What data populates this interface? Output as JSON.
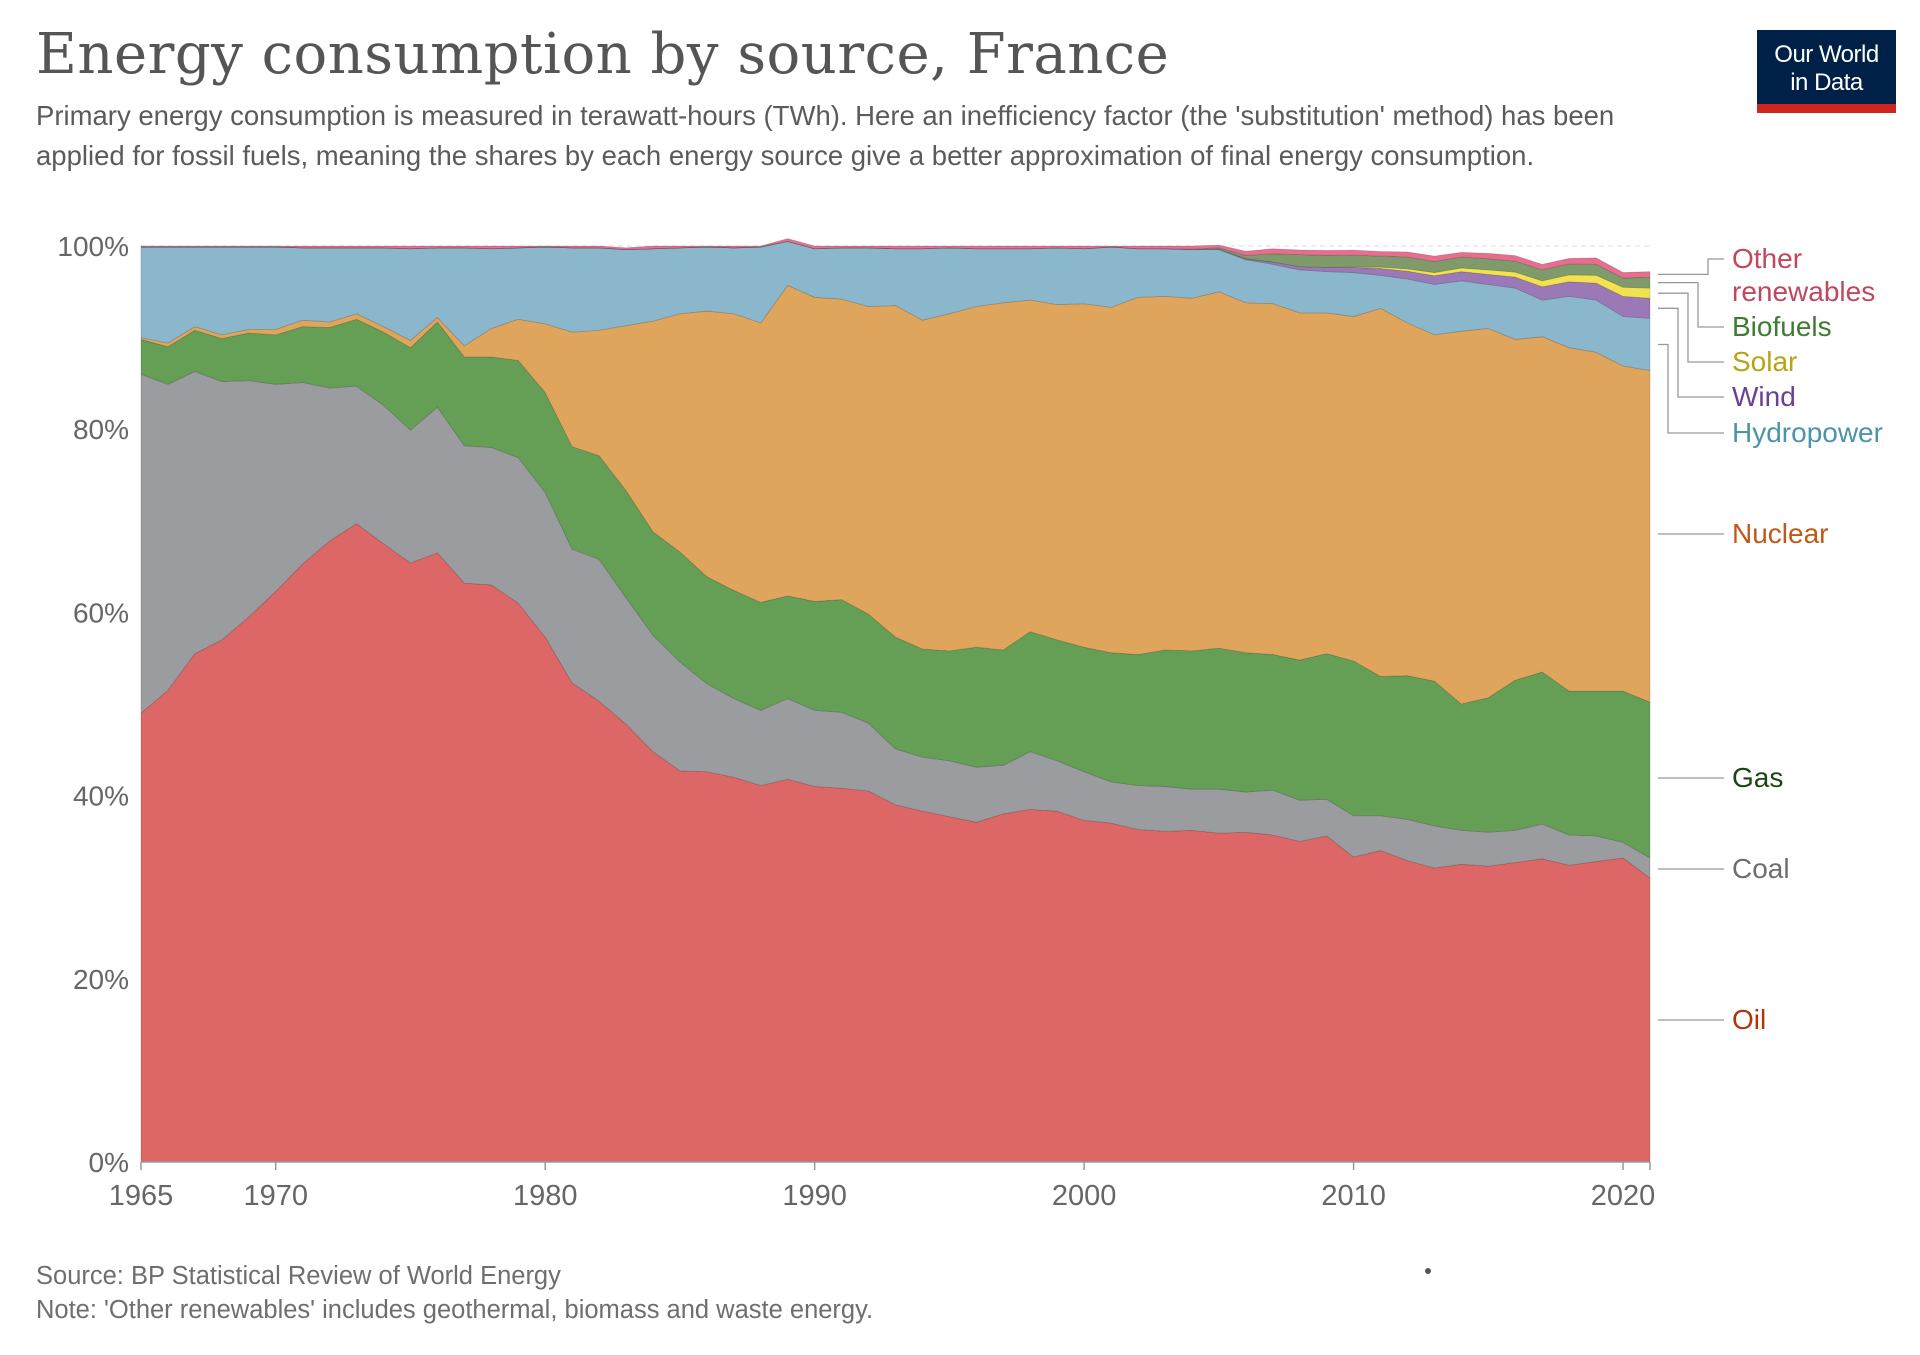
{
  "header": {
    "title": "Energy consumption by source, France",
    "subtitle": "Primary energy consumption is measured in terawatt-hours (TWh). Here an inefficiency factor (the 'substitution' method) has been applied for fossil fuels, meaning the shares by each energy source give a better approximation of final energy consumption.",
    "logo_line1": "Our World",
    "logo_line2": "in Data"
  },
  "footer": {
    "source": "Source: BP Statistical Review of World Energy",
    "note": "Note: 'Other renewables' includes geothermal, biomass and waste energy."
  },
  "chart_data": {
    "type": "area",
    "stacked": true,
    "x": [
      1965,
      1966,
      1967,
      1968,
      1969,
      1970,
      1971,
      1972,
      1973,
      1974,
      1975,
      1976,
      1977,
      1978,
      1979,
      1980,
      1981,
      1982,
      1983,
      1984,
      1985,
      1986,
      1987,
      1988,
      1989,
      1990,
      1991,
      1992,
      1993,
      1994,
      1995,
      1996,
      1997,
      1998,
      1999,
      2000,
      2001,
      2002,
      2003,
      2004,
      2005,
      2006,
      2007,
      2008,
      2009,
      2010,
      2011,
      2012,
      2013,
      2014,
      2015,
      2016,
      2017,
      2018,
      2019,
      2020,
      2021
    ],
    "xlim": [
      1965,
      2021
    ],
    "x_ticks": [
      "1965",
      "1970",
      "1980",
      "1990",
      "2000",
      "2010",
      "2020"
    ],
    "ylim": [
      0,
      100
    ],
    "y_ticks": [
      "0%",
      "20%",
      "40%",
      "60%",
      "80%",
      "100%"
    ],
    "grid": true,
    "legend_placement": "right (labels at series ends)",
    "series": [
      {
        "name": "Oil",
        "color": "#dd6666",
        "label_color": "#b13507",
        "values": [
          49.0,
          51.5,
          55.5,
          57.0,
          59.5,
          62.3,
          65.3,
          67.8,
          69.7,
          67.5,
          65.4,
          66.5,
          63.2,
          63.0,
          61.0,
          57.3,
          52.3,
          50.3,
          47.8,
          44.8,
          42.7,
          42.6,
          42.0,
          41.1,
          41.8,
          41.0,
          40.8,
          40.5,
          39.0,
          38.3,
          37.7,
          37.1,
          38.0,
          38.5,
          38.3,
          37.3,
          37.0,
          36.3,
          36.1,
          36.2,
          35.9,
          36.0,
          35.7,
          35.0,
          35.6,
          33.3,
          34.0,
          32.9,
          32.1,
          32.5,
          32.3,
          32.7,
          33.1,
          32.4,
          32.8,
          33.2,
          31.0
        ]
      },
      {
        "name": "Coal",
        "color": "#9a9c9f",
        "label_color": "#6d6e6e",
        "values": [
          37.0,
          33.4,
          30.8,
          28.2,
          25.8,
          22.6,
          19.8,
          16.7,
          15.0,
          15.1,
          14.5,
          15.9,
          15.0,
          15.0,
          15.9,
          15.8,
          14.6,
          15.5,
          13.8,
          12.7,
          11.9,
          9.6,
          8.6,
          8.2,
          8.8,
          8.3,
          8.3,
          7.4,
          6.1,
          5.9,
          6.1,
          6.0,
          5.3,
          6.3,
          5.5,
          5.3,
          4.5,
          4.8,
          4.9,
          4.5,
          4.8,
          4.4,
          4.9,
          4.5,
          4.0,
          4.5,
          3.8,
          4.5,
          4.6,
          3.7,
          3.7,
          3.5,
          3.8,
          3.3,
          2.8,
          1.7,
          2.2
        ]
      },
      {
        "name": "Gas",
        "color": "#659e55",
        "label_color": "#18470f",
        "values": [
          3.8,
          4.1,
          4.5,
          4.7,
          5.2,
          5.4,
          6.1,
          6.6,
          7.3,
          8.0,
          9.0,
          9.3,
          9.7,
          9.9,
          10.6,
          10.9,
          11.2,
          11.3,
          11.7,
          11.3,
          12.0,
          11.7,
          11.8,
          11.8,
          11.2,
          11.9,
          12.3,
          11.9,
          12.2,
          11.8,
          12.0,
          13.1,
          12.6,
          13.1,
          13.2,
          13.6,
          14.1,
          14.3,
          14.9,
          15.1,
          15.4,
          15.2,
          14.8,
          15.3,
          15.9,
          16.9,
          15.2,
          15.7,
          15.8,
          13.8,
          14.7,
          16.4,
          16.6,
          15.7,
          15.8,
          16.5,
          17.0
        ]
      },
      {
        "name": "Nuclear",
        "color": "#e0a55c",
        "label_color": "#c05917",
        "values": [
          0.2,
          0.4,
          0.4,
          0.4,
          0.4,
          0.6,
          0.7,
          0.6,
          0.6,
          0.6,
          0.8,
          0.5,
          1.2,
          3.1,
          4.5,
          7.5,
          12.5,
          13.7,
          18.0,
          23.0,
          26.0,
          29.0,
          30.2,
          30.5,
          33.9,
          33.2,
          32.8,
          33.6,
          36.2,
          35.9,
          36.8,
          37.2,
          37.9,
          36.2,
          36.6,
          37.5,
          37.7,
          39.0,
          38.6,
          38.5,
          38.9,
          38.2,
          38.3,
          37.9,
          37.2,
          37.6,
          40.2,
          38.5,
          37.8,
          40.7,
          40.3,
          37.2,
          36.6,
          37.5,
          37.0,
          35.5,
          36.2
        ]
      },
      {
        "name": "Hydropower",
        "color": "#8ab7cc",
        "label_color": "#4c95a9",
        "values": [
          9.9,
          10.5,
          8.7,
          9.6,
          9.0,
          9.0,
          7.9,
          8.1,
          7.2,
          8.6,
          10.0,
          7.6,
          10.7,
          8.7,
          7.8,
          8.4,
          9.2,
          9.0,
          8.3,
          7.9,
          7.2,
          7.0,
          7.2,
          8.3,
          4.8,
          5.3,
          5.6,
          6.4,
          6.2,
          7.8,
          7.2,
          6.3,
          5.9,
          5.6,
          6.2,
          6.0,
          6.6,
          5.3,
          5.2,
          5.3,
          4.6,
          4.7,
          4.3,
          4.7,
          4.5,
          4.8,
          3.6,
          4.8,
          5.5,
          5.5,
          4.8,
          5.6,
          4.0,
          5.6,
          5.7,
          5.4,
          5.7
        ]
      },
      {
        "name": "Wind",
        "color": "#9b78b6",
        "label_color": "#6d3e91",
        "values": [
          0,
          0,
          0,
          0,
          0,
          0,
          0,
          0,
          0,
          0,
          0,
          0,
          0,
          0,
          0,
          0,
          0,
          0,
          0,
          0,
          0,
          0,
          0,
          0,
          0,
          0,
          0,
          0,
          0,
          0,
          0,
          0,
          0,
          0,
          0,
          0,
          0,
          0,
          0,
          0,
          0.05,
          0.12,
          0.25,
          0.35,
          0.45,
          0.55,
          0.75,
          0.85,
          0.95,
          1.0,
          1.1,
          1.2,
          1.45,
          1.6,
          1.85,
          2.2,
          2.2
        ]
      },
      {
        "name": "Solar",
        "color": "#f2e24f",
        "label_color": "#b8a312",
        "values": [
          0,
          0,
          0,
          0,
          0,
          0,
          0,
          0,
          0,
          0,
          0,
          0,
          0,
          0,
          0,
          0,
          0,
          0,
          0,
          0,
          0,
          0,
          0,
          0,
          0,
          0,
          0,
          0,
          0,
          0,
          0,
          0,
          0,
          0,
          0,
          0,
          0,
          0,
          0,
          0,
          0,
          0,
          0,
          0.01,
          0.02,
          0.05,
          0.15,
          0.25,
          0.35,
          0.4,
          0.5,
          0.55,
          0.65,
          0.75,
          0.85,
          1.0,
          1.1
        ]
      },
      {
        "name": "Biofuels",
        "color": "#7f9b6c",
        "label_color": "#3f7c33",
        "values": [
          0,
          0,
          0,
          0,
          0,
          0,
          0,
          0,
          0,
          0,
          0,
          0,
          0,
          0,
          0,
          0,
          0,
          0,
          0,
          0,
          0,
          0,
          0,
          0,
          0,
          0,
          0,
          0,
          0,
          0,
          0,
          0,
          0,
          0,
          0,
          0,
          0,
          0,
          0,
          0.05,
          0.15,
          0.35,
          0.9,
          1.3,
          1.3,
          1.3,
          1.2,
          1.3,
          1.2,
          1.2,
          1.2,
          1.2,
          1.2,
          1.2,
          1.2,
          1.0,
          1.2
        ]
      },
      {
        "name": "Other renewables",
        "color": "#e76e8e",
        "label_color": "#c1475d",
        "values": [
          0.1,
          0.1,
          0.1,
          0.1,
          0.1,
          0.1,
          0.2,
          0.2,
          0.2,
          0.2,
          0.3,
          0.2,
          0.2,
          0.3,
          0.2,
          0.1,
          0.2,
          0.2,
          0.2,
          0.3,
          0.2,
          0.1,
          0.2,
          0.1,
          0.3,
          0.3,
          0.2,
          0.2,
          0.3,
          0.3,
          0.2,
          0.3,
          0.3,
          0.3,
          0.2,
          0.3,
          0.1,
          0.3,
          0.3,
          0.35,
          0.3,
          0.45,
          0.55,
          0.5,
          0.55,
          0.55,
          0.5,
          0.55,
          0.6,
          0.5,
          0.6,
          0.6,
          0.6,
          0.6,
          0.7,
          0.6,
          0.6
        ]
      }
    ]
  }
}
